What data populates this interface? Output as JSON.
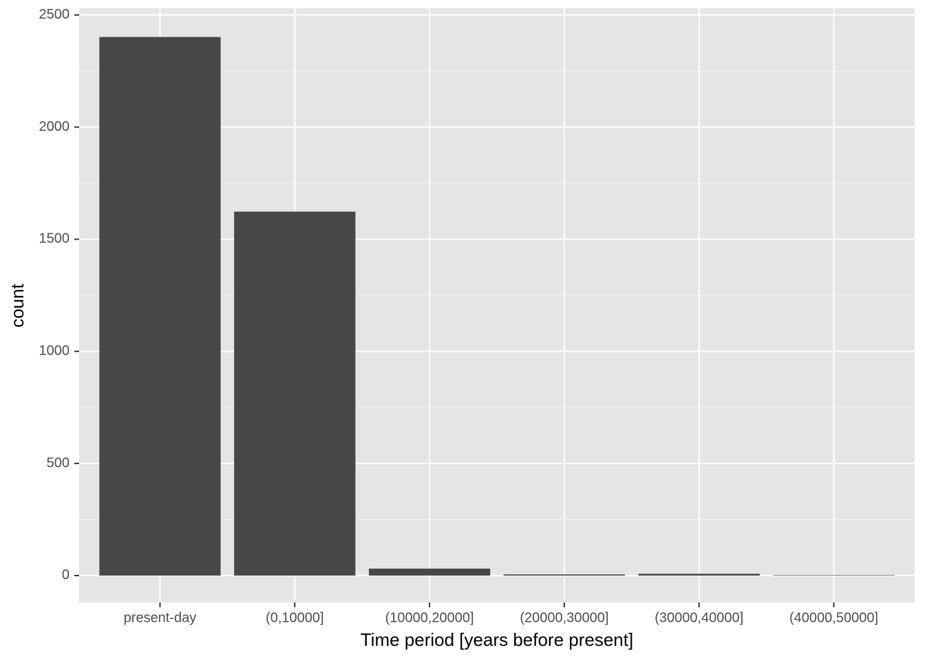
{
  "chart_data": {
    "type": "bar",
    "x_label": "Time period [years before present]",
    "y_label": "count",
    "categories": [
      "present-day",
      "(0,10000]",
      "(10000,20000]",
      "(20000,30000]",
      "(30000,40000]",
      "(40000,50000]"
    ],
    "values": [
      2402,
      1623,
      31,
      5,
      8,
      2
    ],
    "color": "#474747",
    "ylim": [
      -120,
      2530
    ],
    "yticks": [
      0,
      500,
      1000,
      1500,
      2000,
      2500
    ],
    "grid": true
  }
}
